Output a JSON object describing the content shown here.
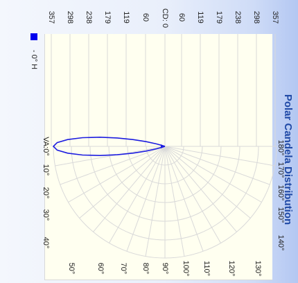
{
  "chart_data": {
    "type": "polar",
    "title": "Polar Candela Distribution",
    "legend": {
      "swatch_color": "#0000ee",
      "label": "- 0° H",
      "position": "top-left"
    },
    "cd_axis_label": "CD:",
    "cd_ticks_left": [
      "0",
      "60",
      "119",
      "179",
      "238",
      "298",
      "357"
    ],
    "cd_ticks_right": [
      "0",
      "60",
      "119",
      "179",
      "238",
      "298",
      "357"
    ],
    "cd_max": 357,
    "va_label": "VA:",
    "angle_ticks_left": [
      "0°",
      "10°",
      "20°",
      "30°",
      "40°"
    ],
    "angle_ticks_bottom": [
      "50°",
      "60°",
      "70°",
      "80°",
      "90°",
      "100°",
      "110°",
      "120°",
      "130°"
    ],
    "angle_ticks_right": [
      "180°",
      "170°",
      "160°",
      "150°",
      "140°"
    ],
    "series": [
      {
        "name": "0° H",
        "color": "#1c1ce0",
        "points": [
          {
            "angle": 0,
            "cd": 357
          },
          {
            "angle": 2,
            "cd": 345
          },
          {
            "angle": 4,
            "cd": 312
          },
          {
            "angle": 6,
            "cd": 265
          },
          {
            "angle": 8,
            "cd": 210
          },
          {
            "angle": 10,
            "cd": 155
          },
          {
            "angle": 12,
            "cd": 105
          },
          {
            "angle": 14,
            "cd": 62
          },
          {
            "angle": 16,
            "cd": 28
          },
          {
            "angle": 18,
            "cd": 8
          },
          {
            "angle": 20,
            "cd": 0
          }
        ]
      }
    ]
  }
}
